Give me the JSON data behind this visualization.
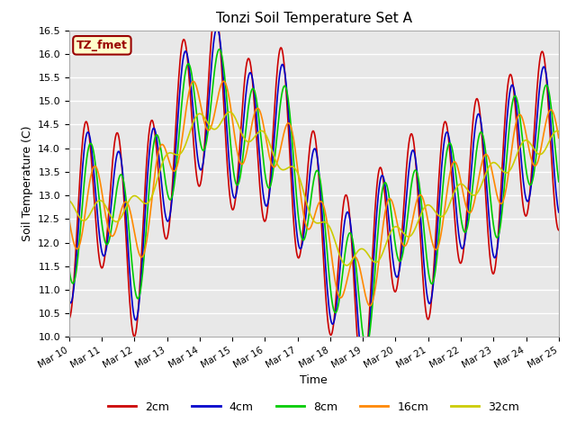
{
  "title": "Tonzi Soil Temperature Set A",
  "xlabel": "Time",
  "ylabel": "Soil Temperature (C)",
  "ylim": [
    10.0,
    16.5
  ],
  "yticks": [
    10.0,
    10.5,
    11.0,
    11.5,
    12.0,
    12.5,
    13.0,
    13.5,
    14.0,
    14.5,
    15.0,
    15.5,
    16.0,
    16.5
  ],
  "colors": {
    "2cm": "#cc0000",
    "4cm": "#0000cc",
    "8cm": "#00cc00",
    "16cm": "#ff8800",
    "32cm": "#cccc00"
  },
  "legend_labels": [
    "2cm",
    "4cm",
    "8cm",
    "16cm",
    "32cm"
  ],
  "annotation_label": "TZ_fmet",
  "annotation_color": "#990000",
  "annotation_bg": "#ffffcc",
  "fig_color": "#ffffff",
  "plot_bg": "#e8e8e8",
  "n_points": 720,
  "x_start": 10.0,
  "x_end": 25.0,
  "xtick_positions": [
    10,
    11,
    12,
    13,
    14,
    15,
    16,
    17,
    18,
    19,
    20,
    21,
    22,
    23,
    24,
    25
  ],
  "xtick_labels": [
    "Mar 10",
    "Mar 11",
    "Mar 12",
    "Mar 13",
    "Mar 14",
    "Mar 15",
    "Mar 16",
    "Mar 17",
    "Mar 18",
    "Mar 19",
    "Mar 20",
    "Mar 21",
    "Mar 22",
    "Mar 23",
    "Mar 24",
    "Mar 25"
  ]
}
